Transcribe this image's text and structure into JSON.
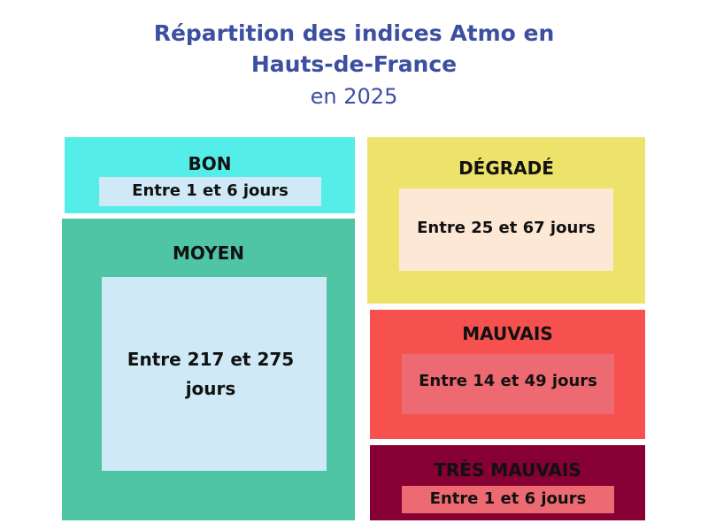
{
  "title": {
    "line1": "Répartition des  indices Atmo en",
    "line2": "Hauts-de-France",
    "subtitle": "en 2025"
  },
  "categories": {
    "bon": {
      "label": "BON",
      "value": "Entre 1 et 6 jours",
      "color": "#55ede8",
      "box_color": "#cfeaf6"
    },
    "moyen": {
      "label": "MOYEN",
      "value": "Entre 217 et 275 jours",
      "color": "#4fc5a5",
      "box_color": "#cfeaf6"
    },
    "degrade": {
      "label": "DÉGRADÉ",
      "value": "Entre 25 et 67 jours",
      "color": "#ede36a",
      "box_color": "#fde8d6"
    },
    "mauvais": {
      "label": "MAUVAIS",
      "value": "Entre 14 et 49 jours",
      "color": "#f6504f",
      "box_color": "#ee6a72"
    },
    "tres_mauvais": {
      "label": "TRÈS MAUVAIS",
      "value": "Entre 1 et 6 jours",
      "color": "#860033",
      "box_color": "#ee6a72"
    }
  }
}
